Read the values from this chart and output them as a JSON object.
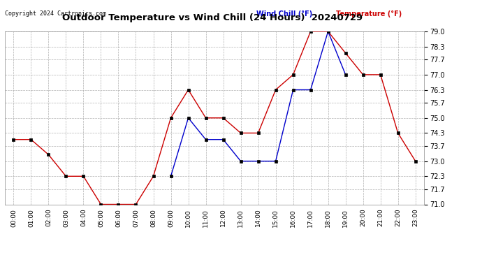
{
  "title": "Outdoor Temperature vs Wind Chill (24 Hours)  20240729",
  "copyright": "Copyright 2024 Cartronics.com",
  "legend_windchill": "Wind Chill (°F)",
  "legend_temp": "Temperature (°F)",
  "x_labels": [
    "00:00",
    "01:00",
    "02:00",
    "03:00",
    "04:00",
    "05:00",
    "06:00",
    "07:00",
    "08:00",
    "09:00",
    "10:00",
    "11:00",
    "12:00",
    "13:00",
    "14:00",
    "15:00",
    "16:00",
    "17:00",
    "18:00",
    "19:00",
    "20:00",
    "21:00",
    "22:00",
    "23:00"
  ],
  "temperature": [
    74.0,
    74.0,
    73.3,
    72.3,
    72.3,
    71.0,
    71.0,
    71.0,
    72.3,
    75.0,
    76.3,
    75.0,
    75.0,
    74.3,
    74.3,
    76.3,
    77.0,
    79.0,
    79.0,
    78.0,
    77.0,
    77.0,
    74.3,
    73.0
  ],
  "wind_chill": [
    null,
    null,
    null,
    null,
    null,
    null,
    null,
    null,
    null,
    72.3,
    75.0,
    74.0,
    74.0,
    73.0,
    73.0,
    73.0,
    76.3,
    76.3,
    79.0,
    77.0,
    null,
    null,
    null,
    null
  ],
  "ylim": [
    71.0,
    79.0
  ],
  "y_ticks": [
    71.0,
    71.7,
    72.3,
    73.0,
    73.7,
    74.3,
    75.0,
    75.7,
    76.3,
    77.0,
    77.7,
    78.3,
    79.0
  ],
  "temp_color": "#cc0000",
  "windchill_color": "#0000cc",
  "bg_color": "#ffffff",
  "grid_color": "#b0b0b0",
  "title_color": "#000000",
  "copyright_color": "#000000",
  "legend_windchill_color": "#0000cc",
  "legend_temp_color": "#cc0000",
  "figwidth": 6.9,
  "figheight": 3.75,
  "dpi": 100
}
